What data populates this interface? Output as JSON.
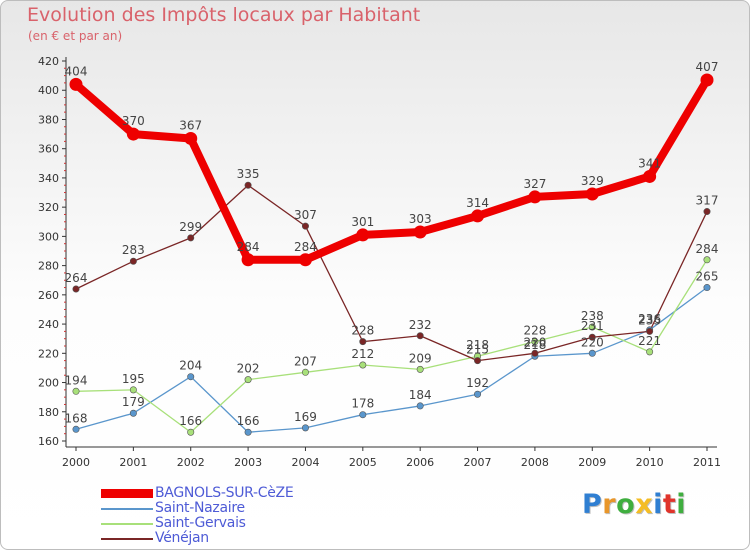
{
  "header": {
    "title": "Evolution des Impôts locaux par Habitant",
    "subtitle": "(en € et par an)"
  },
  "logo": {
    "letters": [
      "P",
      "r",
      "o",
      "x",
      "i",
      "t",
      "i"
    ],
    "colors": [
      "#2f7fd2",
      "#e8962a",
      "#3fae3f",
      "#f4bd25",
      "#2f7fd2",
      "#e0342b",
      "#3fae3f"
    ]
  },
  "chart_data": {
    "type": "line",
    "title": "Evolution des Impôts locaux par Habitant",
    "subtitle": "(en € et par an)",
    "xlabel": "",
    "ylabel": "",
    "categories": [
      "2000",
      "2001",
      "2002",
      "2003",
      "2004",
      "2005",
      "2006",
      "2007",
      "2008",
      "2009",
      "2010",
      "2011"
    ],
    "ylim": [
      160,
      420
    ],
    "yticks": [
      160,
      180,
      200,
      220,
      240,
      260,
      280,
      300,
      320,
      340,
      360,
      380,
      400,
      420
    ],
    "grid": false,
    "legend_position": "bottom-left",
    "series": [
      {
        "name": "BAGNOLS-SUR-CèZE",
        "color": "#ee0000",
        "emphasis": true,
        "values": [
          404,
          370,
          367,
          284,
          284,
          301,
          303,
          314,
          327,
          329,
          341,
          407
        ],
        "labels": [
          "404",
          "370",
          "367",
          "284",
          "284",
          "301",
          "303",
          "314",
          "327",
          "329",
          "341",
          "407"
        ]
      },
      {
        "name": "Saint-Nazaire",
        "color": "#5a96cc",
        "emphasis": false,
        "values": [
          168,
          179,
          204,
          166,
          169,
          178,
          184,
          192,
          218,
          220,
          236,
          265
        ],
        "labels": [
          "168",
          "179",
          "204",
          "166",
          "169",
          "178",
          "184",
          "192",
          "218",
          "220",
          "236",
          "265"
        ]
      },
      {
        "name": "Saint-Gervais",
        "color": "#a8e07a",
        "emphasis": false,
        "values": [
          194,
          195,
          166,
          202,
          207,
          212,
          209,
          218,
          228,
          238,
          221,
          284
        ],
        "labels": [
          "194",
          "195",
          "166",
          "202",
          "207",
          "212",
          "209",
          "218",
          "228",
          "238",
          "221",
          "284"
        ]
      },
      {
        "name": "Vénéjan",
        "color": "#7a2626",
        "emphasis": false,
        "values": [
          264,
          283,
          299,
          335,
          307,
          228,
          232,
          215,
          220,
          231,
          235,
          317
        ],
        "labels": [
          "264",
          "283",
          "299",
          "335",
          "307",
          "228",
          "232",
          "215",
          "220",
          "231",
          "235",
          "317"
        ]
      }
    ]
  }
}
